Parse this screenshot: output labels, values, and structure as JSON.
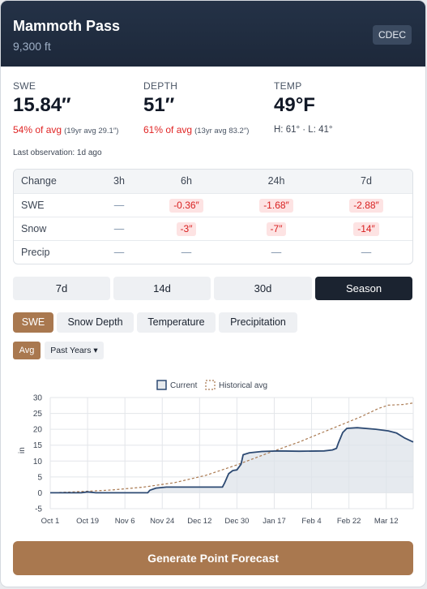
{
  "station": {
    "name": "Mammoth Pass",
    "elevation": "9,300 ft",
    "network": "CDEC"
  },
  "stats": [
    {
      "label": "SWE",
      "value": "15.84″",
      "pct": "54% of avg",
      "avg_note": "(19yr avg 29.1″)"
    },
    {
      "label": "DEPTH",
      "value": "51″",
      "pct": "61% of avg",
      "avg_note": "(13yr avg 83.2″)"
    },
    {
      "label": "TEMP",
      "value": "49°F",
      "hilo": "H: 61° · L: 41°"
    }
  ],
  "last_observation": "Last observation: 1d ago",
  "change_table": {
    "headers": [
      "Change",
      "3h",
      "6h",
      "24h",
      "7d"
    ],
    "rows": [
      {
        "label": "SWE",
        "values": [
          "—",
          "-0.36″",
          "-1.68″",
          "-2.88″"
        ]
      },
      {
        "label": "Snow",
        "values": [
          "—",
          "-3″",
          "-7″",
          "-14″"
        ]
      },
      {
        "label": "Precip",
        "values": [
          "—",
          "—",
          "—",
          "—"
        ]
      }
    ]
  },
  "ranges": [
    "7d",
    "14d",
    "30d",
    "Season"
  ],
  "active_range": "Season",
  "metric_tabs": [
    "SWE",
    "Snow Depth",
    "Temperature",
    "Precipitation"
  ],
  "active_metric": "SWE",
  "overlay": {
    "avg_label": "Avg",
    "past_label": "Past Years ▾"
  },
  "colors": {
    "accent": "#a9784f",
    "dark": "#1b2330",
    "negative": "#d81f1f",
    "current_line": "#2d4a73",
    "avg_line": "#a9784f"
  },
  "chart_data": {
    "type": "line",
    "legend": [
      "Current",
      "Historical avg"
    ],
    "legend_position": "top-center",
    "ylabel": "in",
    "ylim": [
      -5,
      30
    ],
    "yticks": [
      -5,
      0,
      5,
      10,
      15,
      20,
      25,
      30
    ],
    "xticks": [
      "Oct 1",
      "Oct 19",
      "Nov 6",
      "Nov 24",
      "Dec 12",
      "Dec 30",
      "Jan 17",
      "Feb 4",
      "Feb 22",
      "Mar 12"
    ],
    "xdomain_days": [
      0,
      175
    ],
    "series": [
      {
        "name": "Current",
        "style": "solid-filled",
        "points": [
          [
            0,
            0
          ],
          [
            15,
            0
          ],
          [
            18,
            0.3
          ],
          [
            22,
            0
          ],
          [
            47,
            0
          ],
          [
            48,
            0.8
          ],
          [
            51,
            1.5
          ],
          [
            56,
            1.8
          ],
          [
            83,
            1.8
          ],
          [
            84,
            3
          ],
          [
            86,
            6
          ],
          [
            88,
            7
          ],
          [
            90,
            7.2
          ],
          [
            92,
            9
          ],
          [
            93,
            12
          ],
          [
            96,
            12.6
          ],
          [
            102,
            13
          ],
          [
            110,
            13.2
          ],
          [
            120,
            13.1
          ],
          [
            132,
            13.2
          ],
          [
            136,
            13.5
          ],
          [
            138,
            14
          ],
          [
            139,
            15.8
          ],
          [
            141,
            19
          ],
          [
            143,
            20.3
          ],
          [
            148,
            20.5
          ],
          [
            157,
            20
          ],
          [
            163,
            19.5
          ],
          [
            167,
            18.8
          ],
          [
            171,
            17.2
          ],
          [
            175,
            16
          ]
        ]
      },
      {
        "name": "Historical avg",
        "style": "dashed",
        "points": [
          [
            0,
            0
          ],
          [
            15,
            0.4
          ],
          [
            30,
            0.9
          ],
          [
            45,
            1.8
          ],
          [
            60,
            3.2
          ],
          [
            75,
            5.5
          ],
          [
            90,
            8.8
          ],
          [
            105,
            12.5
          ],
          [
            120,
            16
          ],
          [
            135,
            20
          ],
          [
            150,
            24
          ],
          [
            158,
            26.5
          ],
          [
            163,
            27.6
          ],
          [
            170,
            27.8
          ],
          [
            175,
            28.3
          ]
        ]
      }
    ]
  },
  "forecast_button": "Generate Point Forecast"
}
